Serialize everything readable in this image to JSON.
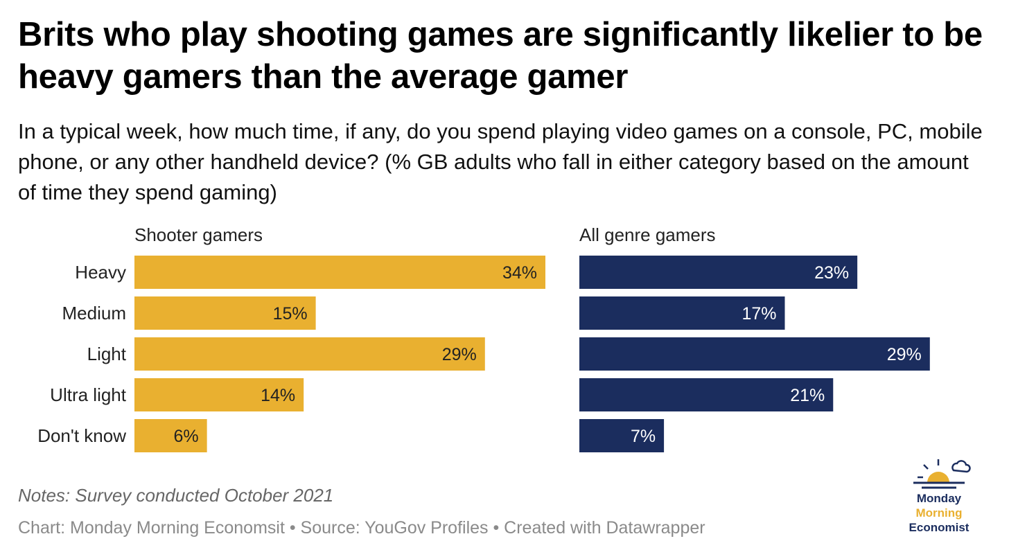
{
  "title": "Brits who play shooting games are significantly likelier to be heavy gamers than the average gamer",
  "subtitle": "In a typical week, how much time, if any, do you spend playing video games on a console, PC, mobile phone, or any other handheld device? (% GB adults who fall in either category based on the amount of time they spend gaming)",
  "notes": "Notes: Survey conducted October 2021",
  "footer": "Chart: Monday Morning Economsit • Source: YouGov Profiles • Created with Datawrapper",
  "logo": {
    "line1": "Monday",
    "line2": "Morning",
    "line3": "Economist",
    "colors": {
      "navy": "#1b2d5e",
      "gold": "#e9b030"
    }
  },
  "chart_data": {
    "type": "bar",
    "orientation": "horizontal",
    "categories": [
      "Heavy",
      "Medium",
      "Light",
      "Ultra light",
      "Don't know"
    ],
    "value_suffix": "%",
    "xlim": [
      0,
      36
    ],
    "series": [
      {
        "name": "Shooter gamers",
        "values": [
          34,
          15,
          29,
          14,
          6
        ],
        "color": "#e9b030",
        "label_color": "#222222"
      },
      {
        "name": "All genre gamers",
        "values": [
          23,
          17,
          29,
          21,
          7
        ],
        "color": "#1b2d5e",
        "label_color": "#ffffff"
      }
    ]
  }
}
